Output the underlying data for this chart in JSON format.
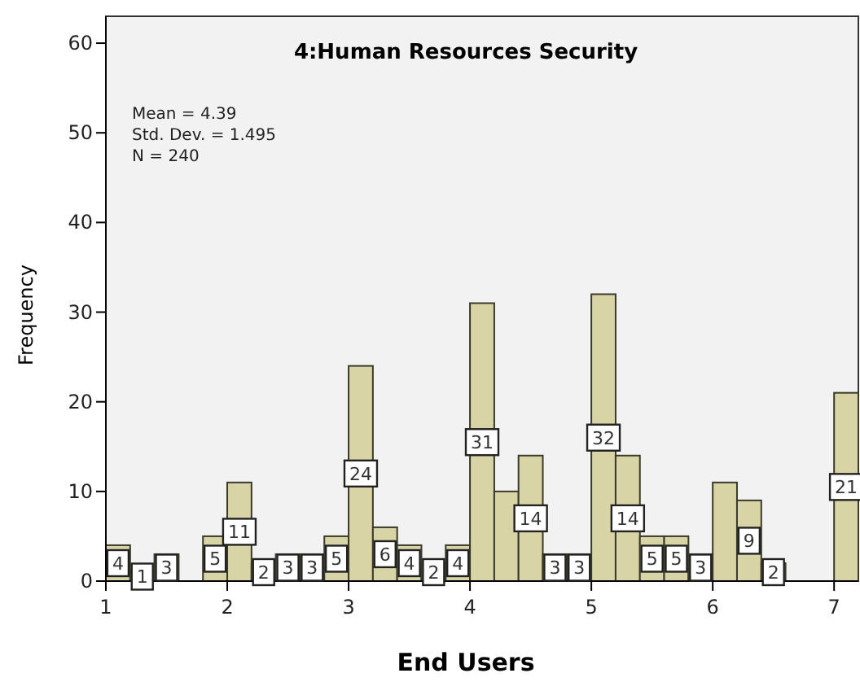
{
  "chart_data": {
    "type": "histogram",
    "title": "4:Human Resources Security",
    "xlabel": "End Users",
    "ylabel": "Frequency",
    "annotations": [
      "Mean = 4.39",
      "Std. Dev. = 1.495",
      "N = 240"
    ],
    "bins": [
      1,
      1.2,
      1.4,
      1.6,
      1.8,
      2,
      2.2,
      2.4,
      2.6,
      2.8,
      3,
      3.2,
      3.4,
      3.6,
      3.8,
      4,
      4.2,
      4.4,
      4.6,
      4.8,
      5,
      5.2,
      5.4,
      5.6,
      5.8,
      6,
      6.2,
      6.4,
      6.6,
      6.8,
      7,
      7.2
    ],
    "values": [
      4,
      1,
      3,
      0,
      5,
      11,
      2,
      3,
      3,
      5,
      24,
      6,
      4,
      2,
      4,
      31,
      10,
      14,
      3,
      3,
      32,
      14,
      5,
      5,
      3,
      11,
      9,
      2,
      0,
      0,
      21
    ],
    "value_labels": [
      "4",
      "1",
      "3",
      null,
      "5",
      "11",
      "2",
      "3",
      "3",
      "5",
      "24",
      "6",
      "4",
      "2",
      "4",
      "31",
      null,
      "14",
      "3",
      "3",
      "32",
      "14",
      "5",
      "5",
      "3",
      null,
      "9",
      "2",
      null,
      null,
      "21"
    ],
    "color": "#d9d4a6",
    "xlim": [
      1,
      7.2
    ],
    "xticks": [
      1,
      2,
      3,
      4,
      5,
      6,
      7
    ],
    "ylim": [
      0,
      63
    ],
    "yticks": [
      0,
      10,
      20,
      30,
      40,
      50,
      60
    ],
    "grid": false
  }
}
